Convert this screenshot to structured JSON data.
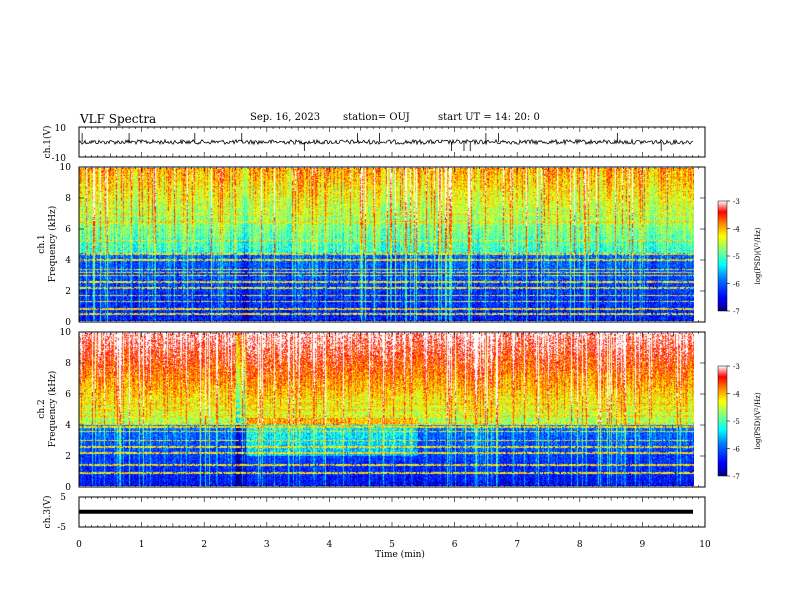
{
  "header": {
    "title": "VLF Spectra",
    "date": "Sep. 16, 2023",
    "station": "station= OUJ",
    "start_ut": "start  UT  =   14: 20: 0"
  },
  "chart_data": [
    {
      "id": "ch1-waveform",
      "type": "line",
      "ylabel": "ch.1(V)",
      "ylim": [
        -10,
        10
      ],
      "yticks": [
        "10",
        "-10"
      ],
      "xlim": [
        0,
        10
      ],
      "description_of_trace": "noisy waveform around 0 V with spikes",
      "spikes_min": [
        0.05,
        0.8,
        1.85,
        2.6,
        3.6,
        4.45,
        4.8,
        5.95,
        6.15,
        6.25,
        6.5,
        6.7,
        8.6,
        9.3
      ]
    },
    {
      "id": "ch1-spectrogram",
      "type": "heatmap",
      "ylabel": "ch.1\nFrequency (kHz)",
      "ylim": [
        0,
        10
      ],
      "yticks": [
        "0",
        "2",
        "4",
        "6",
        "8",
        "10"
      ],
      "xlim": [
        0,
        10
      ],
      "colorbar": {
        "label": "log(PSD)(V²/Hz)",
        "ticks": [
          "-3",
          "-4",
          "-5",
          "-6",
          "-7"
        ],
        "range": [
          -7,
          -3
        ]
      },
      "bright_lines_khz": [
        0.5,
        0.8,
        1.3,
        1.7,
        2.2,
        2.6,
        3.0,
        3.2,
        3.4,
        4.0,
        4.4,
        5.3,
        6.5,
        7.0
      ]
    },
    {
      "id": "ch2-spectrogram",
      "type": "heatmap",
      "ylabel": "ch.2\nFrequency (kHz)",
      "ylim": [
        0,
        10
      ],
      "yticks": [
        "0",
        "2",
        "4",
        "6",
        "8",
        "10"
      ],
      "xlim": [
        0,
        10
      ],
      "colorbar": {
        "label": "log(PSD)(V²/Hz)",
        "ticks": [
          "-3",
          "-4",
          "-5",
          "-6",
          "-7"
        ],
        "range": [
          -7,
          -3
        ]
      },
      "bright_lines_khz": [
        0.9,
        1.4,
        2.2,
        2.6,
        3.0,
        3.6,
        3.9,
        4.1,
        4.6,
        5.0,
        5.4,
        6.6
      ]
    },
    {
      "id": "ch3-waveform",
      "type": "line",
      "ylabel": "ch.3(V)",
      "ylim": [
        -5,
        5
      ],
      "yticks": [
        "5",
        "-5"
      ],
      "xlim": [
        0,
        10
      ],
      "xlabel": "Time  (min)",
      "xticks": [
        "0",
        "1",
        "2",
        "3",
        "4",
        "5",
        "6",
        "7",
        "8",
        "9",
        "10"
      ],
      "trace_value": 0.1
    }
  ],
  "colors": {
    "scale": [
      "#00007f",
      "#0000ff",
      "#0080ff",
      "#00ffff",
      "#80ff80",
      "#ffff00",
      "#ff8000",
      "#ff0000",
      "#ffffff"
    ]
  }
}
